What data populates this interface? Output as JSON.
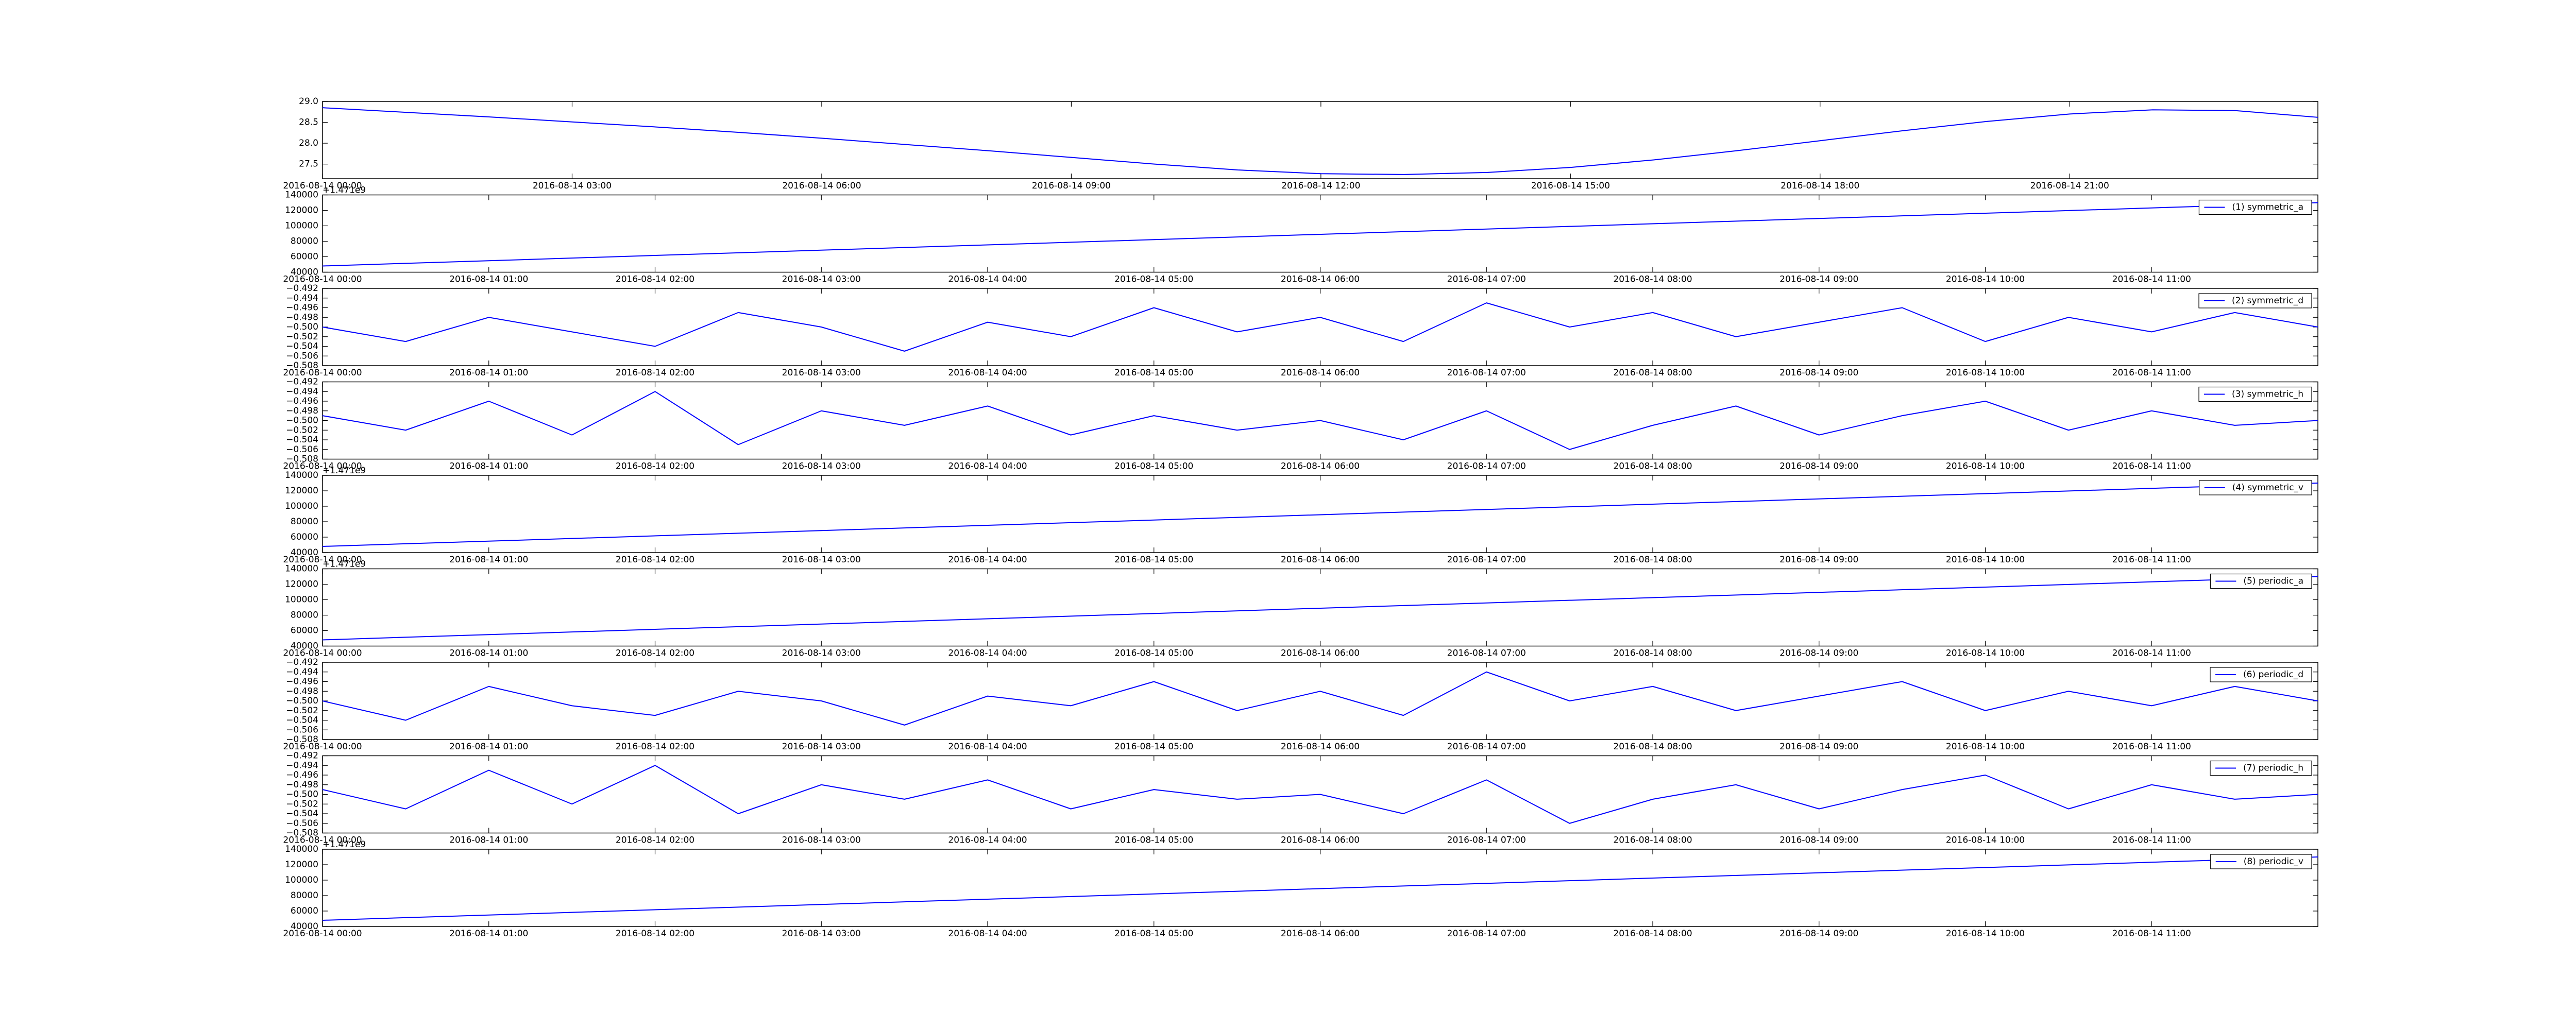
{
  "chart_data": [
    {
      "type": "line",
      "x": [
        "2016-08-14 00:00",
        "2016-08-14 01:00",
        "2016-08-14 02:00",
        "2016-08-14 03:00",
        "2016-08-14 04:00",
        "2016-08-14 05:00",
        "2016-08-14 06:00",
        "2016-08-14 07:00",
        "2016-08-14 08:00",
        "2016-08-14 09:00",
        "2016-08-14 10:00",
        "2016-08-14 11:00",
        "2016-08-14 12:00",
        "2016-08-14 13:00",
        "2016-08-14 14:00",
        "2016-08-14 15:00",
        "2016-08-14 16:00",
        "2016-08-14 17:00",
        "2016-08-14 18:00",
        "2016-08-14 19:00",
        "2016-08-14 20:00",
        "2016-08-14 21:00",
        "2016-08-14 22:00",
        "2016-08-14 23:00",
        "2016-08-14 23:59"
      ],
      "series": [
        {
          "color": "#0000ff",
          "values": [
            28.85,
            28.74,
            28.63,
            28.51,
            28.39,
            28.26,
            28.12,
            27.97,
            27.82,
            27.66,
            27.5,
            27.36,
            27.27,
            27.25,
            27.3,
            27.42,
            27.6,
            27.82,
            28.06,
            28.3,
            28.52,
            28.7,
            28.8,
            28.78,
            28.62
          ]
        }
      ],
      "xlim": [
        "2016-08-14 00:00",
        "2016-08-14 23:59"
      ],
      "xticks": [
        "2016-08-14 00:00",
        "2016-08-14 03:00",
        "2016-08-14 06:00",
        "2016-08-14 09:00",
        "2016-08-14 12:00",
        "2016-08-14 15:00",
        "2016-08-14 18:00",
        "2016-08-14 21:00"
      ],
      "ylim": [
        27.15,
        29.0
      ],
      "yticks": [
        27.5,
        {
          "value": 28,
          "label": "28.0"
        },
        28.5,
        {
          "value": 29,
          "label": "29.0"
        }
      ]
    },
    {
      "type": "line",
      "offset_text": "+1.471e9",
      "x": [
        "2016-08-14 00:00",
        "2016-08-14 12:00"
      ],
      "series": [
        {
          "name": "(1) symmetric_a",
          "color": "#0000ff",
          "values": [
            48000,
            130000
          ]
        }
      ],
      "xlim": [
        "2016-08-14 00:00",
        "2016-08-14 12:00"
      ],
      "xticks": [
        "2016-08-14 00:00",
        "2016-08-14 01:00",
        "2016-08-14 02:00",
        "2016-08-14 03:00",
        "2016-08-14 04:00",
        "2016-08-14 05:00",
        "2016-08-14 06:00",
        "2016-08-14 07:00",
        "2016-08-14 08:00",
        "2016-08-14 09:00",
        "2016-08-14 10:00",
        "2016-08-14 11:00"
      ],
      "ylim": [
        40000,
        140000
      ],
      "yticks": [
        40000,
        60000,
        80000,
        100000,
        120000,
        140000
      ]
    },
    {
      "type": "line",
      "x": [
        "2016-08-14 00:00",
        "2016-08-14 00:30",
        "2016-08-14 01:00",
        "2016-08-14 01:30",
        "2016-08-14 02:00",
        "2016-08-14 02:30",
        "2016-08-14 03:00",
        "2016-08-14 03:30",
        "2016-08-14 04:00",
        "2016-08-14 04:30",
        "2016-08-14 05:00",
        "2016-08-14 05:30",
        "2016-08-14 06:00",
        "2016-08-14 06:30",
        "2016-08-14 07:00",
        "2016-08-14 07:30",
        "2016-08-14 08:00",
        "2016-08-14 08:30",
        "2016-08-14 09:00",
        "2016-08-14 09:30",
        "2016-08-14 10:00",
        "2016-08-14 10:30",
        "2016-08-14 11:00",
        "2016-08-14 11:30",
        "2016-08-14 12:00"
      ],
      "series": [
        {
          "name": "(2) symmetric_d",
          "color": "#0000ff",
          "values": [
            -0.5,
            -0.503,
            -0.498,
            -0.501,
            -0.504,
            -0.497,
            -0.5,
            -0.505,
            -0.499,
            -0.502,
            -0.496,
            -0.501,
            -0.498,
            -0.503,
            -0.495,
            -0.5,
            -0.497,
            -0.502,
            -0.499,
            -0.496,
            -0.503,
            -0.498,
            -0.501,
            -0.497,
            -0.5
          ]
        }
      ],
      "xlim": [
        "2016-08-14 00:00",
        "2016-08-14 12:00"
      ],
      "xticks": [
        "2016-08-14 00:00",
        "2016-08-14 01:00",
        "2016-08-14 02:00",
        "2016-08-14 03:00",
        "2016-08-14 04:00",
        "2016-08-14 05:00",
        "2016-08-14 06:00",
        "2016-08-14 07:00",
        "2016-08-14 08:00",
        "2016-08-14 09:00",
        "2016-08-14 10:00",
        "2016-08-14 11:00"
      ],
      "ylim": [
        -0.508,
        -0.492
      ],
      "yticks": [
        {
          "value": -0.508,
          "label": "−0.508"
        },
        {
          "value": -0.506,
          "label": "−0.506"
        },
        {
          "value": -0.504,
          "label": "−0.504"
        },
        {
          "value": -0.502,
          "label": "−0.502"
        },
        {
          "value": -0.5,
          "label": "−0.500"
        },
        {
          "value": -0.498,
          "label": "−0.498"
        },
        {
          "value": -0.496,
          "label": "−0.496"
        },
        {
          "value": -0.494,
          "label": "−0.494"
        },
        {
          "value": -0.492,
          "label": "−0.492"
        }
      ]
    },
    {
      "type": "line",
      "x": [
        "2016-08-14 00:00",
        "2016-08-14 00:30",
        "2016-08-14 01:00",
        "2016-08-14 01:30",
        "2016-08-14 02:00",
        "2016-08-14 02:30",
        "2016-08-14 03:00",
        "2016-08-14 03:30",
        "2016-08-14 04:00",
        "2016-08-14 04:30",
        "2016-08-14 05:00",
        "2016-08-14 05:30",
        "2016-08-14 06:00",
        "2016-08-14 06:30",
        "2016-08-14 07:00",
        "2016-08-14 07:30",
        "2016-08-14 08:00",
        "2016-08-14 08:30",
        "2016-08-14 09:00",
        "2016-08-14 09:30",
        "2016-08-14 10:00",
        "2016-08-14 10:30",
        "2016-08-14 11:00",
        "2016-08-14 11:30",
        "2016-08-14 12:00"
      ],
      "series": [
        {
          "name": "(3) symmetric_h",
          "color": "#0000ff",
          "values": [
            -0.499,
            -0.502,
            -0.496,
            -0.503,
            -0.494,
            -0.505,
            -0.498,
            -0.501,
            -0.497,
            -0.503,
            -0.499,
            -0.502,
            -0.5,
            -0.504,
            -0.498,
            -0.506,
            -0.501,
            -0.497,
            -0.503,
            -0.499,
            -0.496,
            -0.502,
            -0.498,
            -0.501,
            -0.5
          ]
        }
      ],
      "xlim": [
        "2016-08-14 00:00",
        "2016-08-14 12:00"
      ],
      "xticks": [
        "2016-08-14 00:00",
        "2016-08-14 01:00",
        "2016-08-14 02:00",
        "2016-08-14 03:00",
        "2016-08-14 04:00",
        "2016-08-14 05:00",
        "2016-08-14 06:00",
        "2016-08-14 07:00",
        "2016-08-14 08:00",
        "2016-08-14 09:00",
        "2016-08-14 10:00",
        "2016-08-14 11:00"
      ],
      "ylim": [
        -0.508,
        -0.492
      ],
      "yticks": [
        {
          "value": -0.508,
          "label": "−0.508"
        },
        {
          "value": -0.506,
          "label": "−0.506"
        },
        {
          "value": -0.504,
          "label": "−0.504"
        },
        {
          "value": -0.502,
          "label": "−0.502"
        },
        {
          "value": -0.5,
          "label": "−0.500"
        },
        {
          "value": -0.498,
          "label": "−0.498"
        },
        {
          "value": -0.496,
          "label": "−0.496"
        },
        {
          "value": -0.494,
          "label": "−0.494"
        },
        {
          "value": -0.492,
          "label": "−0.492"
        }
      ]
    },
    {
      "type": "line",
      "offset_text": "+1.471e9",
      "x": [
        "2016-08-14 00:00",
        "2016-08-14 12:00"
      ],
      "series": [
        {
          "name": "(4) symmetric_v",
          "color": "#0000ff",
          "values": [
            48000,
            130000
          ]
        }
      ],
      "xlim": [
        "2016-08-14 00:00",
        "2016-08-14 12:00"
      ],
      "xticks": [
        "2016-08-14 00:00",
        "2016-08-14 01:00",
        "2016-08-14 02:00",
        "2016-08-14 03:00",
        "2016-08-14 04:00",
        "2016-08-14 05:00",
        "2016-08-14 06:00",
        "2016-08-14 07:00",
        "2016-08-14 08:00",
        "2016-08-14 09:00",
        "2016-08-14 10:00",
        "2016-08-14 11:00"
      ],
      "ylim": [
        40000,
        140000
      ],
      "yticks": [
        40000,
        60000,
        80000,
        100000,
        120000,
        140000
      ]
    },
    {
      "type": "line",
      "offset_text": "+1.471e9",
      "x": [
        "2016-08-14 00:00",
        "2016-08-14 12:00"
      ],
      "series": [
        {
          "name": "(5) periodic_a",
          "color": "#0000ff",
          "values": [
            48000,
            130000
          ]
        }
      ],
      "xlim": [
        "2016-08-14 00:00",
        "2016-08-14 12:00"
      ],
      "xticks": [
        "2016-08-14 00:00",
        "2016-08-14 01:00",
        "2016-08-14 02:00",
        "2016-08-14 03:00",
        "2016-08-14 04:00",
        "2016-08-14 05:00",
        "2016-08-14 06:00",
        "2016-08-14 07:00",
        "2016-08-14 08:00",
        "2016-08-14 09:00",
        "2016-08-14 10:00",
        "2016-08-14 11:00"
      ],
      "ylim": [
        40000,
        140000
      ],
      "yticks": [
        40000,
        60000,
        80000,
        100000,
        120000,
        140000
      ]
    },
    {
      "type": "line",
      "x": [
        "2016-08-14 00:00",
        "2016-08-14 00:30",
        "2016-08-14 01:00",
        "2016-08-14 01:30",
        "2016-08-14 02:00",
        "2016-08-14 02:30",
        "2016-08-14 03:00",
        "2016-08-14 03:30",
        "2016-08-14 04:00",
        "2016-08-14 04:30",
        "2016-08-14 05:00",
        "2016-08-14 05:30",
        "2016-08-14 06:00",
        "2016-08-14 06:30",
        "2016-08-14 07:00",
        "2016-08-14 07:30",
        "2016-08-14 08:00",
        "2016-08-14 08:30",
        "2016-08-14 09:00",
        "2016-08-14 09:30",
        "2016-08-14 10:00",
        "2016-08-14 10:30",
        "2016-08-14 11:00",
        "2016-08-14 11:30",
        "2016-08-14 12:00"
      ],
      "series": [
        {
          "name": "(6) periodic_d",
          "color": "#0000ff",
          "values": [
            -0.5,
            -0.504,
            -0.497,
            -0.501,
            -0.503,
            -0.498,
            -0.5,
            -0.505,
            -0.499,
            -0.501,
            -0.496,
            -0.502,
            -0.498,
            -0.503,
            -0.494,
            -0.5,
            -0.497,
            -0.502,
            -0.499,
            -0.496,
            -0.502,
            -0.498,
            -0.501,
            -0.497,
            -0.5
          ]
        }
      ],
      "xlim": [
        "2016-08-14 00:00",
        "2016-08-14 12:00"
      ],
      "xticks": [
        "2016-08-14 00:00",
        "2016-08-14 01:00",
        "2016-08-14 02:00",
        "2016-08-14 03:00",
        "2016-08-14 04:00",
        "2016-08-14 05:00",
        "2016-08-14 06:00",
        "2016-08-14 07:00",
        "2016-08-14 08:00",
        "2016-08-14 09:00",
        "2016-08-14 10:00",
        "2016-08-14 11:00"
      ],
      "ylim": [
        -0.508,
        -0.492
      ],
      "yticks": [
        {
          "value": -0.508,
          "label": "−0.508"
        },
        {
          "value": -0.506,
          "label": "−0.506"
        },
        {
          "value": -0.504,
          "label": "−0.504"
        },
        {
          "value": -0.502,
          "label": "−0.502"
        },
        {
          "value": -0.5,
          "label": "−0.500"
        },
        {
          "value": -0.498,
          "label": "−0.498"
        },
        {
          "value": -0.496,
          "label": "−0.496"
        },
        {
          "value": -0.494,
          "label": "−0.494"
        },
        {
          "value": -0.492,
          "label": "−0.492"
        }
      ]
    },
    {
      "type": "line",
      "x": [
        "2016-08-14 00:00",
        "2016-08-14 00:30",
        "2016-08-14 01:00",
        "2016-08-14 01:30",
        "2016-08-14 02:00",
        "2016-08-14 02:30",
        "2016-08-14 03:00",
        "2016-08-14 03:30",
        "2016-08-14 04:00",
        "2016-08-14 04:30",
        "2016-08-14 05:00",
        "2016-08-14 05:30",
        "2016-08-14 06:00",
        "2016-08-14 06:30",
        "2016-08-14 07:00",
        "2016-08-14 07:30",
        "2016-08-14 08:00",
        "2016-08-14 08:30",
        "2016-08-14 09:00",
        "2016-08-14 09:30",
        "2016-08-14 10:00",
        "2016-08-14 10:30",
        "2016-08-14 11:00",
        "2016-08-14 11:30",
        "2016-08-14 12:00"
      ],
      "series": [
        {
          "name": "(7) periodic_h",
          "color": "#0000ff",
          "values": [
            -0.499,
            -0.503,
            -0.495,
            -0.502,
            -0.494,
            -0.504,
            -0.498,
            -0.501,
            -0.497,
            -0.503,
            -0.499,
            -0.501,
            -0.5,
            -0.504,
            -0.497,
            -0.506,
            -0.501,
            -0.498,
            -0.503,
            -0.499,
            -0.496,
            -0.503,
            -0.498,
            -0.501,
            -0.5
          ]
        }
      ],
      "xlim": [
        "2016-08-14 00:00",
        "2016-08-14 12:00"
      ],
      "xticks": [
        "2016-08-14 00:00",
        "2016-08-14 01:00",
        "2016-08-14 02:00",
        "2016-08-14 03:00",
        "2016-08-14 04:00",
        "2016-08-14 05:00",
        "2016-08-14 06:00",
        "2016-08-14 07:00",
        "2016-08-14 08:00",
        "2016-08-14 09:00",
        "2016-08-14 10:00",
        "2016-08-14 11:00"
      ],
      "ylim": [
        -0.508,
        -0.492
      ],
      "yticks": [
        {
          "value": -0.508,
          "label": "−0.508"
        },
        {
          "value": -0.506,
          "label": "−0.506"
        },
        {
          "value": -0.504,
          "label": "−0.504"
        },
        {
          "value": -0.502,
          "label": "−0.502"
        },
        {
          "value": -0.5,
          "label": "−0.500"
        },
        {
          "value": -0.498,
          "label": "−0.498"
        },
        {
          "value": -0.496,
          "label": "−0.496"
        },
        {
          "value": -0.494,
          "label": "−0.494"
        },
        {
          "value": -0.492,
          "label": "−0.492"
        }
      ]
    },
    {
      "type": "line",
      "offset_text": "+1.471e9",
      "x": [
        "2016-08-14 00:00",
        "2016-08-14 12:00"
      ],
      "series": [
        {
          "name": "(8) periodic_v",
          "color": "#0000ff",
          "values": [
            48000,
            130000
          ]
        }
      ],
      "xlim": [
        "2016-08-14 00:00",
        "2016-08-14 12:00"
      ],
      "xticks": [
        "2016-08-14 00:00",
        "2016-08-14 01:00",
        "2016-08-14 02:00",
        "2016-08-14 03:00",
        "2016-08-14 04:00",
        "2016-08-14 05:00",
        "2016-08-14 06:00",
        "2016-08-14 07:00",
        "2016-08-14 08:00",
        "2016-08-14 09:00",
        "2016-08-14 10:00",
        "2016-08-14 11:00"
      ],
      "ylim": [
        40000,
        140000
      ],
      "yticks": [
        40000,
        60000,
        80000,
        100000,
        120000,
        140000
      ]
    }
  ]
}
